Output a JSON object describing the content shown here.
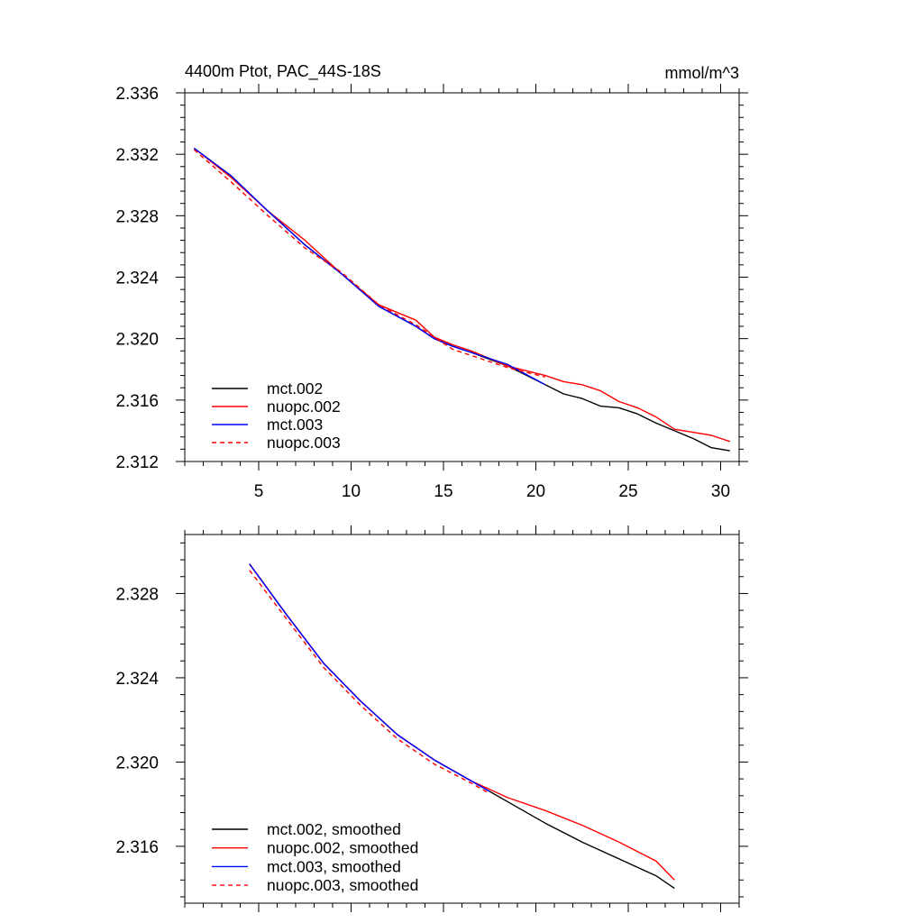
{
  "chart_data": [
    {
      "type": "line",
      "title_left": "4400m Ptot, PAC_44S-18S",
      "title_right": "mmol/m^3",
      "xlim": [
        1,
        31
      ],
      "ylim": [
        2.312,
        2.336
      ],
      "xticks": [
        5,
        10,
        15,
        20,
        25,
        30
      ],
      "xtick_labels": [
        "5",
        "10",
        "15",
        "20",
        "25",
        "30"
      ],
      "yticks": [
        2.312,
        2.316,
        2.32,
        2.324,
        2.328,
        2.332,
        2.336
      ],
      "ytick_labels": [
        "2.312",
        "2.316",
        "2.320",
        "2.324",
        "2.328",
        "2.332",
        "2.336"
      ],
      "legend_position": "bottom-left",
      "series": [
        {
          "name": "mct.002",
          "color": "#000000",
          "dash": false,
          "x": [
            1.5,
            3.5,
            5.5,
            7.5,
            9.5,
            11.5,
            13.5,
            14.5,
            15.5,
            16.5,
            18.5,
            20.5,
            21.5,
            22.5,
            23.5,
            24.5,
            25.5,
            26.5,
            27.5,
            28.5,
            29.5,
            30.5
          ],
          "y": [
            2.3324,
            2.3306,
            2.3283,
            2.3261,
            2.3242,
            2.3221,
            2.3208,
            2.32,
            2.3195,
            2.3191,
            2.3182,
            2.317,
            2.3164,
            2.3161,
            2.3156,
            2.3155,
            2.3151,
            2.3145,
            2.314,
            2.3135,
            2.3129,
            2.3127
          ]
        },
        {
          "name": "nuopc.002",
          "color": "#ff0000",
          "dash": false,
          "x": [
            1.5,
            3.5,
            5.5,
            7.5,
            9.5,
            11.5,
            13.5,
            14.5,
            15.5,
            16.5,
            18.5,
            20.5,
            21.5,
            22.5,
            23.5,
            24.5,
            25.5,
            26.5,
            27.5,
            28.5,
            29.5,
            30.5
          ],
          "y": [
            2.3324,
            2.3305,
            2.3283,
            2.3264,
            2.3242,
            2.3222,
            2.3212,
            2.3201,
            2.3196,
            2.3192,
            2.3182,
            2.3176,
            2.3172,
            2.317,
            2.3166,
            2.3159,
            2.3155,
            2.3149,
            2.3141,
            2.3139,
            2.3137,
            2.3133
          ]
        },
        {
          "name": "mct.003",
          "color": "#0000ff",
          "dash": false,
          "x": [
            1.5,
            3.5,
            5.5,
            7.5,
            9.5,
            11.5,
            13.5,
            14.5,
            15.5,
            16.5,
            18.5,
            20.5
          ],
          "y": [
            2.3324,
            2.3306,
            2.3283,
            2.3261,
            2.3242,
            2.3221,
            2.3208,
            2.32,
            2.3195,
            2.3191,
            2.3183,
            2.317
          ]
        },
        {
          "name": "nuopc.003",
          "color": "#ff0000",
          "dash": true,
          "x": [
            1.5,
            3.5,
            5.5,
            7.5,
            9.5,
            11.5,
            13.5,
            14.5,
            15.5,
            16.5,
            18.5,
            20.5
          ],
          "y": [
            2.3323,
            2.3302,
            2.328,
            2.3259,
            2.3243,
            2.3222,
            2.3209,
            2.3201,
            2.3193,
            2.3189,
            2.3181,
            2.3175
          ]
        }
      ]
    },
    {
      "type": "line",
      "xlim": [
        1,
        31
      ],
      "ylim": [
        2.3133,
        2.3308
      ],
      "xticks": [
        5,
        10,
        15,
        20,
        25,
        30
      ],
      "yticks": [
        2.316,
        2.32,
        2.324,
        2.328
      ],
      "ytick_labels": [
        "2.316",
        "2.320",
        "2.324",
        "2.328"
      ],
      "legend_position": "bottom-left",
      "series": [
        {
          "name": "mct.002, smoothed",
          "color": "#000000",
          "dash": false,
          "x": [
            4.5,
            6.5,
            8.5,
            10.5,
            12.5,
            14.5,
            16.5,
            18.5,
            20.5,
            22.5,
            24.5,
            26.5,
            27.5
          ],
          "y": [
            2.3294,
            2.327,
            2.3247,
            2.3229,
            2.3213,
            2.3201,
            2.3191,
            2.3181,
            2.3171,
            2.3162,
            2.3154,
            2.3146,
            2.314
          ]
        },
        {
          "name": "nuopc.002, smoothed",
          "color": "#ff0000",
          "dash": false,
          "x": [
            4.5,
            6.5,
            8.5,
            10.5,
            12.5,
            14.5,
            16.5,
            18.5,
            20.5,
            22.5,
            24.5,
            26.5,
            27.5
          ],
          "y": [
            2.3294,
            2.327,
            2.3247,
            2.3229,
            2.3213,
            2.3201,
            2.3191,
            2.3183,
            2.3177,
            2.317,
            2.3162,
            2.3153,
            2.3144
          ]
        },
        {
          "name": "mct.003, smoothed",
          "color": "#0000ff",
          "dash": false,
          "x": [
            4.5,
            6.5,
            8.5,
            10.5,
            12.5,
            14.5,
            16.5,
            17.5
          ],
          "y": [
            2.3294,
            2.327,
            2.3247,
            2.3229,
            2.3213,
            2.3201,
            2.3191,
            2.3186
          ]
        },
        {
          "name": "nuopc.003, smoothed",
          "color": "#ff0000",
          "dash": true,
          "x": [
            4.5,
            6.5,
            8.5,
            10.5,
            12.5,
            14.5,
            16.5,
            17.5
          ],
          "y": [
            2.3291,
            2.3268,
            2.3245,
            2.3227,
            2.3211,
            2.3199,
            2.319,
            2.3185
          ]
        }
      ]
    }
  ]
}
